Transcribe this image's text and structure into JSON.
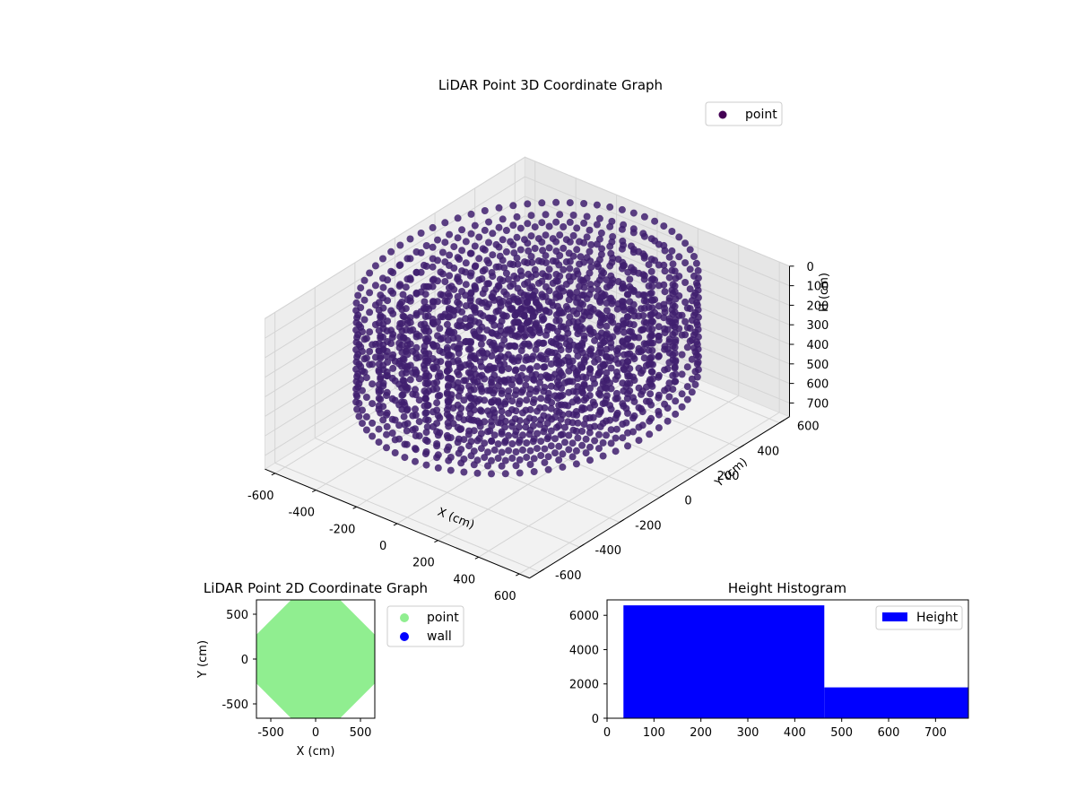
{
  "chart_data": [
    {
      "type": "scatter",
      "projection": "3d",
      "title": "LiDAR Point 3D Coordinate Graph",
      "xlabel": "X (cm)",
      "ylabel": "Y (cm)",
      "zlabel": "H (cm)",
      "xlim": [
        -650,
        650
      ],
      "ylim": [
        -650,
        650
      ],
      "zlim": [
        770,
        0
      ],
      "z_axis_inverted": true,
      "x_ticks": [
        "-600",
        "-400",
        "-200",
        "0",
        "200",
        "400",
        "600"
      ],
      "y_ticks": [
        "-600",
        "-400",
        "-200",
        "0",
        "200",
        "400",
        "600"
      ],
      "z_ticks": [
        "0",
        "100",
        "200",
        "300",
        "400",
        "500",
        "600",
        "700"
      ],
      "grid": true,
      "legend": {
        "position": "top-right",
        "entries": [
          {
            "label": "point",
            "color": "#440154"
          }
        ]
      },
      "series": [
        {
          "name": "point",
          "color": "#3f1e6e",
          "description": "dense cylindrical scan rings",
          "ring_radii_cm": [
            600,
            520,
            440,
            360,
            280,
            200,
            120
          ],
          "ring_heights_cm": [
            0,
            150,
            300,
            450,
            600,
            700
          ]
        }
      ]
    },
    {
      "type": "scatter",
      "title": "LiDAR Point 2D Coordinate Graph",
      "xlabel": "X (cm)",
      "ylabel": "Y (cm)",
      "xlim": [
        -660,
        660
      ],
      "ylim": [
        -660,
        660
      ],
      "x_ticks": [
        "-500",
        "0",
        "500"
      ],
      "y_ticks": [
        "-500",
        "0",
        "500"
      ],
      "legend": {
        "position": "outside-right",
        "entries": [
          {
            "label": "point",
            "color": "#90ee90"
          },
          {
            "label": "wall",
            "color": "#0000ff"
          }
        ]
      },
      "series": [
        {
          "name": "point",
          "color": "#90ee90",
          "shape": "filled octagon",
          "radius_cm": 660
        },
        {
          "name": "wall",
          "color": "#0000ff",
          "points": []
        }
      ]
    },
    {
      "type": "bar",
      "subtype": "histogram",
      "title": "Height Histogram",
      "xlabel": "",
      "ylabel": "",
      "xlim": [
        0,
        770
      ],
      "ylim": [
        0,
        6900
      ],
      "x_ticks": [
        "0",
        "100",
        "200",
        "300",
        "400",
        "500",
        "600",
        "700"
      ],
      "y_ticks": [
        "0",
        "2000",
        "4000",
        "6000"
      ],
      "legend": {
        "position": "top-right",
        "entries": [
          {
            "label": "Height",
            "color": "#0000ff"
          }
        ]
      },
      "series": [
        {
          "name": "Height",
          "color": "#0000ff",
          "bins": [
            {
              "start": 35,
              "end": 463,
              "count": 6580
            },
            {
              "start": 463,
              "end": 770,
              "count": 1800
            }
          ]
        }
      ]
    }
  ]
}
